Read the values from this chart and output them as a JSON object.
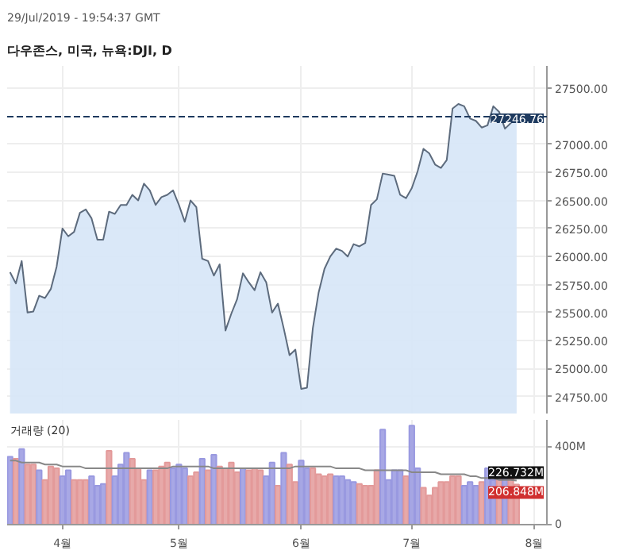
{
  "chart_data": [
    {
      "type": "area",
      "title": "다우존스, 미국, 뉴욕:DJI, D",
      "subtitle": "29/Jul/2019 - 19:54:37 GMT",
      "categories": [
        null,
        null,
        null,
        null,
        null,
        null,
        null,
        null,
        null,
        "4월",
        null,
        null,
        null,
        null,
        null,
        null,
        null,
        null,
        null,
        null,
        null,
        null,
        null,
        null,
        null,
        null,
        null,
        null,
        null,
        "5월",
        null,
        null,
        null,
        null,
        null,
        null,
        null,
        null,
        null,
        null,
        null,
        null,
        null,
        null,
        null,
        null,
        null,
        null,
        null,
        null,
        "6월",
        null,
        null,
        null,
        null,
        null,
        null,
        null,
        null,
        null,
        null,
        null,
        null,
        null,
        null,
        null,
        null,
        null,
        null,
        "7월",
        null,
        null,
        null,
        null,
        null,
        null,
        null,
        null,
        null,
        null,
        null,
        null,
        null,
        null,
        null,
        null,
        null,
        null,
        null,
        null,
        "8월"
      ],
      "series": [
        {
          "color": "#5d6b7d",
          "values": [
            25860,
            25760,
            25960,
            25500,
            25510,
            25650,
            25630,
            25710,
            25910,
            26250,
            26180,
            26220,
            26390,
            26420,
            26340,
            26150,
            26150,
            26400,
            26380,
            26460,
            26460,
            26550,
            26500,
            26650,
            26590,
            26460,
            26530,
            26550,
            26590,
            26460,
            26310,
            26500,
            26440,
            25980,
            25960,
            25830,
            25930,
            25340,
            25490,
            25620,
            25850,
            25770,
            25700,
            25860,
            25770,
            25500,
            25580,
            25360,
            25120,
            25170,
            24820,
            24830,
            25360,
            25680,
            25890,
            26000,
            26070,
            26050,
            26000,
            26110,
            26090,
            26120,
            26460,
            26510,
            26740,
            26730,
            26720,
            26550,
            26520,
            26610,
            26760,
            26960,
            26920,
            26820,
            26790,
            26860,
            27320,
            27360,
            27340,
            27230,
            27210,
            27150,
            27170,
            27340,
            27290,
            27140,
            27190,
            27246.76,
            null,
            null,
            null
          ]
        }
      ],
      "ylim": [
        24600,
        27700
      ],
      "yticks": [
        {
          "value": 24750,
          "label": "24750.00"
        },
        {
          "value": 25000,
          "label": "25000.00"
        },
        {
          "value": 25250,
          "label": "25250.00"
        },
        {
          "value": 25500,
          "label": "25500.00"
        },
        {
          "value": 25750,
          "label": "25750.00"
        },
        {
          "value": 26000,
          "label": "26000.00"
        },
        {
          "value": 26250,
          "label": "26250.00"
        },
        {
          "value": 26500,
          "label": "26500.00"
        },
        {
          "value": 26750,
          "label": "26750.00"
        },
        {
          "value": 27000,
          "label": "27000.00"
        },
        {
          "value": 27500,
          "label": "27500.00"
        }
      ],
      "ref_lines": [
        {
          "axis": "y",
          "value": 27246.76,
          "label": "27246.76",
          "color": "#1e3a5f",
          "line_style": "dashed"
        }
      ],
      "grid": true,
      "tick_labels": "y"
    },
    {
      "type": "bar",
      "title": "거래량 (20)",
      "categories": [
        null,
        null,
        null,
        null,
        null,
        null,
        null,
        null,
        null,
        "4월",
        null,
        null,
        null,
        null,
        null,
        null,
        null,
        null,
        null,
        null,
        null,
        null,
        null,
        null,
        null,
        null,
        null,
        null,
        null,
        "5월",
        null,
        null,
        null,
        null,
        null,
        null,
        null,
        null,
        null,
        null,
        null,
        null,
        null,
        null,
        null,
        null,
        null,
        null,
        null,
        null,
        "6월",
        null,
        null,
        null,
        null,
        null,
        null,
        null,
        null,
        null,
        null,
        null,
        null,
        null,
        null,
        null,
        null,
        null,
        null,
        "7월",
        null,
        null,
        null,
        null,
        null,
        null,
        null,
        null,
        null,
        null,
        null,
        null,
        null,
        null,
        null,
        null,
        null,
        null,
        null,
        null,
        "8월"
      ],
      "series": [
        {
          "type": "bar",
          "colors": [
            "#9999e0",
            "#e39a9a",
            "#9999e0",
            "#e39a9a",
            "#e39a9a",
            "#9999e0",
            "#e39a9a",
            "#e39a9a",
            "#e39a9a",
            "#9999e0",
            "#9999e0",
            "#e39a9a",
            "#e39a9a",
            "#e39a9a",
            "#9999e0",
            "#9999e0",
            "#9999e0",
            "#e39a9a",
            "#9999e0",
            "#9999e0",
            "#9999e0",
            "#e39a9a",
            "#e39a9a",
            "#e39a9a",
            "#9999e0",
            "#e39a9a",
            "#e39a9a",
            "#e39a9a",
            "#9999e0",
            "#9999e0",
            "#9999e0",
            "#e39a9a",
            "#e39a9a",
            "#9999e0",
            "#e39a9a",
            "#9999e0",
            "#e39a9a",
            "#e39a9a",
            "#e39a9a",
            "#e39a9a",
            "#9999e0",
            "#e39a9a",
            "#e39a9a",
            "#e39a9a",
            "#9999e0",
            "#9999e0",
            "#e39a9a",
            "#9999e0",
            "#e39a9a",
            "#e39a9a",
            "#9999e0",
            "#9999e0",
            "#e39a9a",
            "#e39a9a",
            "#e39a9a",
            "#e39a9a",
            "#9999e0",
            "#9999e0",
            "#9999e0",
            "#9999e0",
            "#e39a9a",
            "#e39a9a",
            "#e39a9a",
            "#e39a9a",
            "#9999e0",
            "#9999e0",
            "#9999e0",
            "#9999e0",
            "#e39a9a",
            "#9999e0",
            "#9999e0",
            "#e39a9a",
            "#e39a9a",
            "#e39a9a",
            "#e39a9a",
            "#e39a9a",
            "#e39a9a",
            "#e39a9a",
            "#9999e0",
            "#9999e0",
            "#9999e0",
            "#e39a9a",
            "#9999e0",
            "#9999e0",
            "#e39a9a",
            "#9999e0",
            "#e39a9a",
            "#e39a9a",
            "#e39a9a",
            "#e39a9a",
            "#e39a9a"
          ],
          "values": [
            350,
            340,
            390,
            310,
            310,
            280,
            230,
            300,
            290,
            250,
            280,
            230,
            230,
            230,
            250,
            200,
            210,
            380,
            250,
            310,
            370,
            340,
            290,
            230,
            280,
            280,
            300,
            320,
            290,
            310,
            290,
            250,
            270,
            340,
            280,
            360,
            300,
            290,
            320,
            270,
            290,
            280,
            290,
            280,
            250,
            320,
            200,
            370,
            310,
            220,
            330,
            290,
            290,
            260,
            250,
            260,
            250,
            250,
            230,
            220,
            210,
            200,
            200,
            280,
            490,
            230,
            280,
            280,
            250,
            510,
            290,
            190,
            150,
            190,
            220,
            220,
            250,
            250,
            200,
            220,
            200,
            220,
            290,
            230,
            250,
            240,
            240,
            206.848,
            null,
            null,
            null
          ]
        },
        {
          "type": "line",
          "color": "#888888",
          "values": [
            330,
            330,
            320,
            320,
            320,
            320,
            310,
            310,
            310,
            300,
            300,
            300,
            300,
            290,
            290,
            290,
            290,
            290,
            290,
            290,
            290,
            290,
            290,
            290,
            290,
            290,
            290,
            290,
            300,
            300,
            300,
            300,
            300,
            300,
            300,
            290,
            290,
            290,
            290,
            290,
            290,
            290,
            290,
            290,
            290,
            290,
            290,
            290,
            290,
            300,
            300,
            300,
            300,
            300,
            300,
            300,
            290,
            290,
            290,
            290,
            290,
            280,
            280,
            280,
            280,
            280,
            280,
            280,
            280,
            270,
            270,
            270,
            270,
            270,
            260,
            260,
            260,
            260,
            260,
            250,
            250,
            240,
            240,
            240,
            230,
            230,
            230,
            226.732,
            null,
            null,
            null
          ]
        }
      ],
      "ylim": [
        0,
        540
      ],
      "yticks": [
        {
          "value": 0,
          "label": "0"
        },
        {
          "value": 400,
          "label": "400M"
        }
      ],
      "annotations": [
        {
          "text": "226.732M",
          "y": 226.732
        },
        {
          "text": "206.848M",
          "y": 206.848
        }
      ],
      "grid": true
    }
  ]
}
